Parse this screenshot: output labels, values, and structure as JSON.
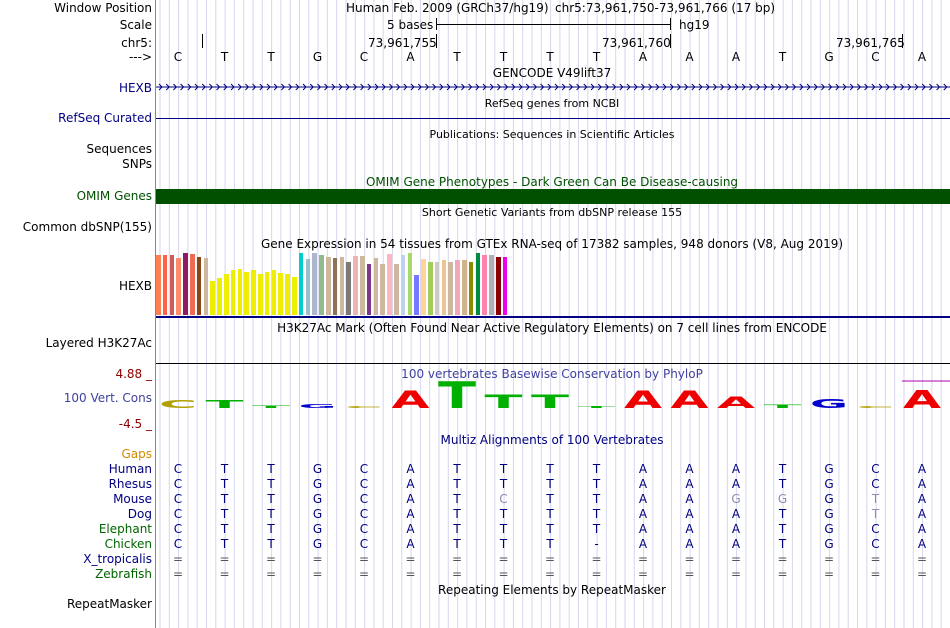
{
  "header": {
    "window_position_label": "Window Position",
    "assembly": "Human Feb. 2009 (GRCh37/hg19)",
    "coordinates": "chr5:73,961,750-73,961,766 (17 bp)",
    "scale_label": "Scale",
    "scale_bar": "5 bases",
    "scale_db": "hg19",
    "chrom_label": "chr5:",
    "ticks": [
      "73,961,755",
      "73,961,760",
      "73,961,765"
    ],
    "strand_label": "--->"
  },
  "sequence": [
    "C",
    "T",
    "T",
    "G",
    "C",
    "A",
    "T",
    "T",
    "T",
    "T",
    "A",
    "A",
    "A",
    "T",
    "G",
    "C",
    "A"
  ],
  "tracks": {
    "gencode": {
      "title": "GENCODE V49lift37",
      "gene_label": "HEXB"
    },
    "refseq": {
      "title": "RefSeq genes from NCBI",
      "label": "RefSeq Curated"
    },
    "publications": {
      "title": "Publications: Sequences in Scientific Articles",
      "label_line1": "Sequences",
      "label_line2": "SNPs"
    },
    "omim": {
      "title": "OMIM Gene Phenotypes - Dark Green Can Be Disease-causing",
      "label": "OMIM Genes",
      "color": "#005000"
    },
    "dbsnp": {
      "title": "Short Genetic Variants from dbSNP release 155",
      "label": "Common dbSNP(155)"
    },
    "gtex": {
      "title": "Gene Expression in 54 tissues from GTEx RNA-seq of 17382 samples, 948 donors (V8, Aug 2019)",
      "gene_label": "HEXB",
      "bars": [
        {
          "value": 0.96,
          "color": "#FF7F50"
        },
        {
          "value": 0.96,
          "color": "#FF6347"
        },
        {
          "value": 0.96,
          "color": "#CD5C5C"
        },
        {
          "value": 0.92,
          "color": "#FF8C69"
        },
        {
          "value": 1.0,
          "color": "#8B1C62"
        },
        {
          "value": 0.98,
          "color": "#EE6A50"
        },
        {
          "value": 0.94,
          "color": "#8B4513"
        },
        {
          "value": 0.92,
          "color": "#CDB79E"
        },
        {
          "value": 0.55,
          "color": "#EEEE00"
        },
        {
          "value": 0.6,
          "color": "#EEEE00"
        },
        {
          "value": 0.66,
          "color": "#EEEE00"
        },
        {
          "value": 0.72,
          "color": "#EEEE00"
        },
        {
          "value": 0.74,
          "color": "#EEEE00"
        },
        {
          "value": 0.7,
          "color": "#EEEE00"
        },
        {
          "value": 0.72,
          "color": "#EEEE00"
        },
        {
          "value": 0.66,
          "color": "#EEEE00"
        },
        {
          "value": 0.7,
          "color": "#EEEE00"
        },
        {
          "value": 0.72,
          "color": "#EEEE00"
        },
        {
          "value": 0.68,
          "color": "#EEEE00"
        },
        {
          "value": 0.66,
          "color": "#EEEE00"
        },
        {
          "value": 0.62,
          "color": "#EEEE00"
        },
        {
          "value": 1.0,
          "color": "#00CDCD"
        },
        {
          "value": 0.9,
          "color": "#9AC0CD"
        },
        {
          "value": 1.0,
          "color": "#AEB6CF"
        },
        {
          "value": 0.97,
          "color": "#8FBC8F"
        },
        {
          "value": 0.94,
          "color": "#CDB79E"
        },
        {
          "value": 0.92,
          "color": "#8B7355"
        },
        {
          "value": 0.93,
          "color": "#CDB79E"
        },
        {
          "value": 0.85,
          "color": "#7A7A7A"
        },
        {
          "value": 0.95,
          "color": "#EEB4B4"
        },
        {
          "value": 0.95,
          "color": "#CDB79E"
        },
        {
          "value": 0.83,
          "color": "#7A378B"
        },
        {
          "value": 0.92,
          "color": "#CDB79E"
        },
        {
          "value": 0.82,
          "color": "#CDB79E"
        },
        {
          "value": 0.98,
          "color": "#FFB6C1"
        },
        {
          "value": 0.82,
          "color": "#CDB79E"
        },
        {
          "value": 0.97,
          "color": "#BCD2EE"
        },
        {
          "value": 1.0,
          "color": "#A6D96A"
        },
        {
          "value": 0.65,
          "color": "#7777FF"
        },
        {
          "value": 0.9,
          "color": "#FFD39B"
        },
        {
          "value": 0.85,
          "color": "#A2CD5A"
        },
        {
          "value": 0.86,
          "color": "#CDC9C9"
        },
        {
          "value": 0.88,
          "color": "#EEC591"
        },
        {
          "value": 0.86,
          "color": "#CDB79E"
        },
        {
          "value": 0.88,
          "color": "#EEA9B8"
        },
        {
          "value": 0.88,
          "color": "#D2B48C"
        },
        {
          "value": 0.85,
          "color": "#8B8B00"
        },
        {
          "value": 1.0,
          "color": "#008B45"
        },
        {
          "value": 0.96,
          "color": "#FF82AB"
        },
        {
          "value": 0.96,
          "color": "#B0B0B0"
        },
        {
          "value": 0.94,
          "color": "#8B0000"
        },
        {
          "value": 0.94,
          "color": "#EE00EE"
        }
      ]
    },
    "h3k27ac": {
      "title": "H3K27Ac Mark (Often Found Near Active Regulatory Elements) on 7 cell lines from ENCODE",
      "label": "Layered H3K27Ac"
    },
    "phylop": {
      "title": "100 vertebrates Basewise Conservation by PhyloP",
      "label": "100 Vert. Cons",
      "max_label": "4.88 _",
      "min_label": "-4.5 _",
      "scores": [
        1.2,
        1.2,
        0.4,
        0.6,
        0.3,
        2.8,
        4.3,
        2.2,
        2.2,
        0.3,
        2.8,
        2.8,
        1.9,
        0.5,
        1.5,
        0.2,
        2.9
      ]
    },
    "multiz": {
      "title": "Multiz Alignments of 100 Vertebrates",
      "gaps_label": "Gaps",
      "species": [
        {
          "name": "Human",
          "bases": [
            "C",
            "T",
            "T",
            "G",
            "C",
            "A",
            "T",
            "T",
            "T",
            "T",
            "A",
            "A",
            "A",
            "T",
            "G",
            "C",
            "A"
          ]
        },
        {
          "name": "Rhesus",
          "bases": [
            "C",
            "T",
            "T",
            "G",
            "C",
            "A",
            "T",
            "T",
            "T",
            "T",
            "A",
            "A",
            "A",
            "T",
            "G",
            "C",
            "A"
          ]
        },
        {
          "name": "Mouse",
          "bases": [
            "C",
            "T",
            "T",
            "G",
            "C",
            "A",
            "T",
            "C",
            "T",
            "T",
            "A",
            "A",
            "G",
            "G",
            "G",
            "T",
            "A"
          ]
        },
        {
          "name": "Dog",
          "bases": [
            "C",
            "T",
            "T",
            "G",
            "C",
            "A",
            "T",
            "T",
            "T",
            "T",
            "A",
            "A",
            "A",
            "T",
            "G",
            "T",
            "A"
          ]
        },
        {
          "name": "Elephant",
          "bases": [
            "C",
            "T",
            "T",
            "G",
            "C",
            "A",
            "T",
            "T",
            "T",
            "T",
            "A",
            "A",
            "A",
            "T",
            "G",
            "C",
            "A"
          ]
        },
        {
          "name": "Chicken",
          "bases": [
            "C",
            "T",
            "T",
            "G",
            "C",
            "A",
            "T",
            "T",
            "T",
            "-",
            "A",
            "A",
            "A",
            "T",
            "G",
            "C",
            "A"
          ]
        },
        {
          "name": "X_tropicalis",
          "bases": [
            "=",
            "=",
            "=",
            "=",
            "=",
            "=",
            "=",
            "=",
            "=",
            "=",
            "=",
            "=",
            "=",
            "=",
            "=",
            "=",
            "="
          ]
        },
        {
          "name": "Zebrafish",
          "bases": [
            "=",
            "=",
            "=",
            "=",
            "=",
            "=",
            "=",
            "=",
            "=",
            "=",
            "=",
            "=",
            "=",
            "=",
            "=",
            "=",
            "="
          ]
        }
      ],
      "mismatch_color": "#8c8cb4"
    },
    "repeatmasker": {
      "title": "Repeating Elements by RepeatMasker",
      "label": "RepeatMasker"
    }
  },
  "colors": {
    "label_navy": "#000080",
    "gaps_orange": "#D58A00",
    "elephant_green": "#006400",
    "phylop_red": "#8B0000",
    "phylop_blue": "#4040A0",
    "gene_line": "#000080"
  }
}
